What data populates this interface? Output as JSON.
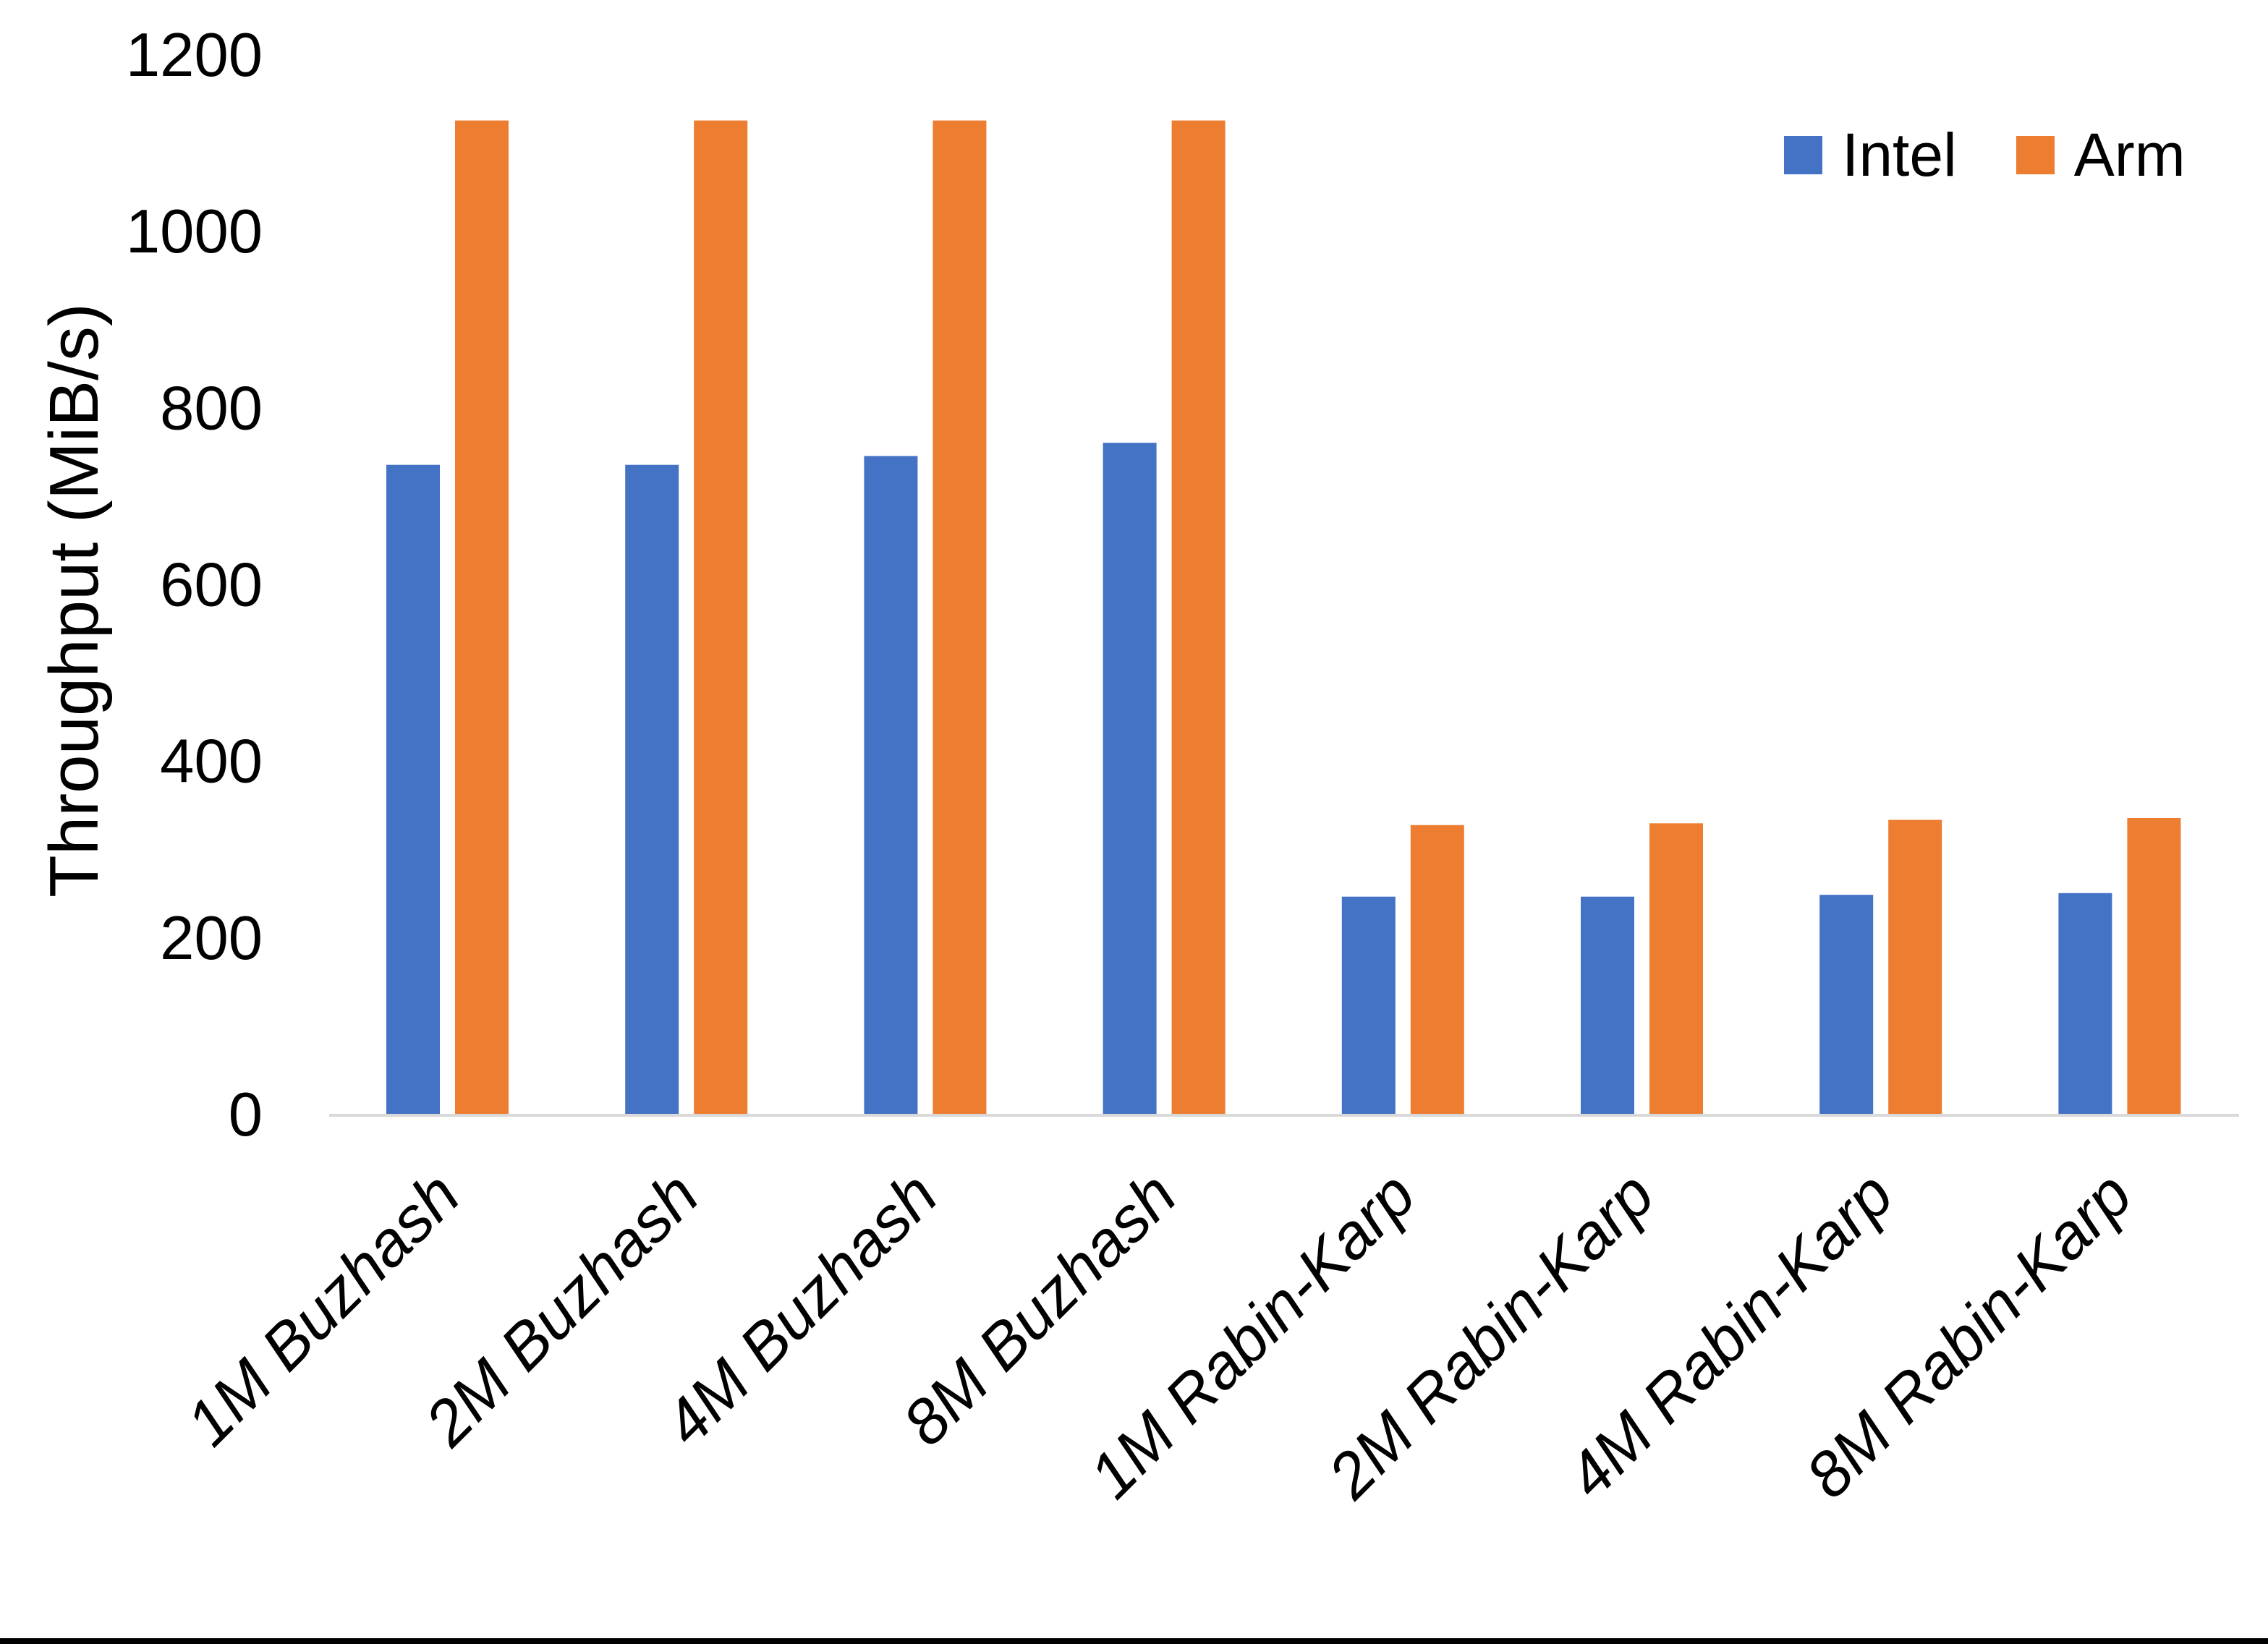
{
  "chart_data": {
    "type": "bar",
    "categories": [
      "1M Buzhash",
      "2M Buzhash",
      "4M Buzhash",
      "8M Buzhash",
      "1M Rabin-Karp",
      "2M Rabin-Karp",
      "4M Rabin-Karp",
      "8M Rabin-Karp"
    ],
    "series": [
      {
        "name": "Intel",
        "color": "#4472C4",
        "values": [
          735,
          735,
          745,
          760,
          246,
          246,
          248,
          250
        ]
      },
      {
        "name": "Arm",
        "color": "#ED7D31",
        "values": [
          1125,
          1125,
          1125,
          1125,
          327,
          329,
          333,
          335
        ]
      }
    ],
    "title": "",
    "xlabel": "",
    "ylabel": "Throughput (MiB/s)",
    "ylim": [
      0,
      1200
    ],
    "yticks": [
      0,
      200,
      400,
      600,
      800,
      1000,
      1200
    ],
    "grid": false,
    "legend_position": "top-right"
  },
  "legend": {
    "items": [
      {
        "label": "Intel",
        "color": "#4472C4"
      },
      {
        "label": "Arm",
        "color": "#ED7D31"
      }
    ]
  },
  "axis": {
    "ylabel": "Throughput (MiB/s)",
    "baseline_color": "#D9D9D9",
    "text_color": "#000000"
  },
  "frame": {
    "bottom_bar_color": "#000000"
  }
}
